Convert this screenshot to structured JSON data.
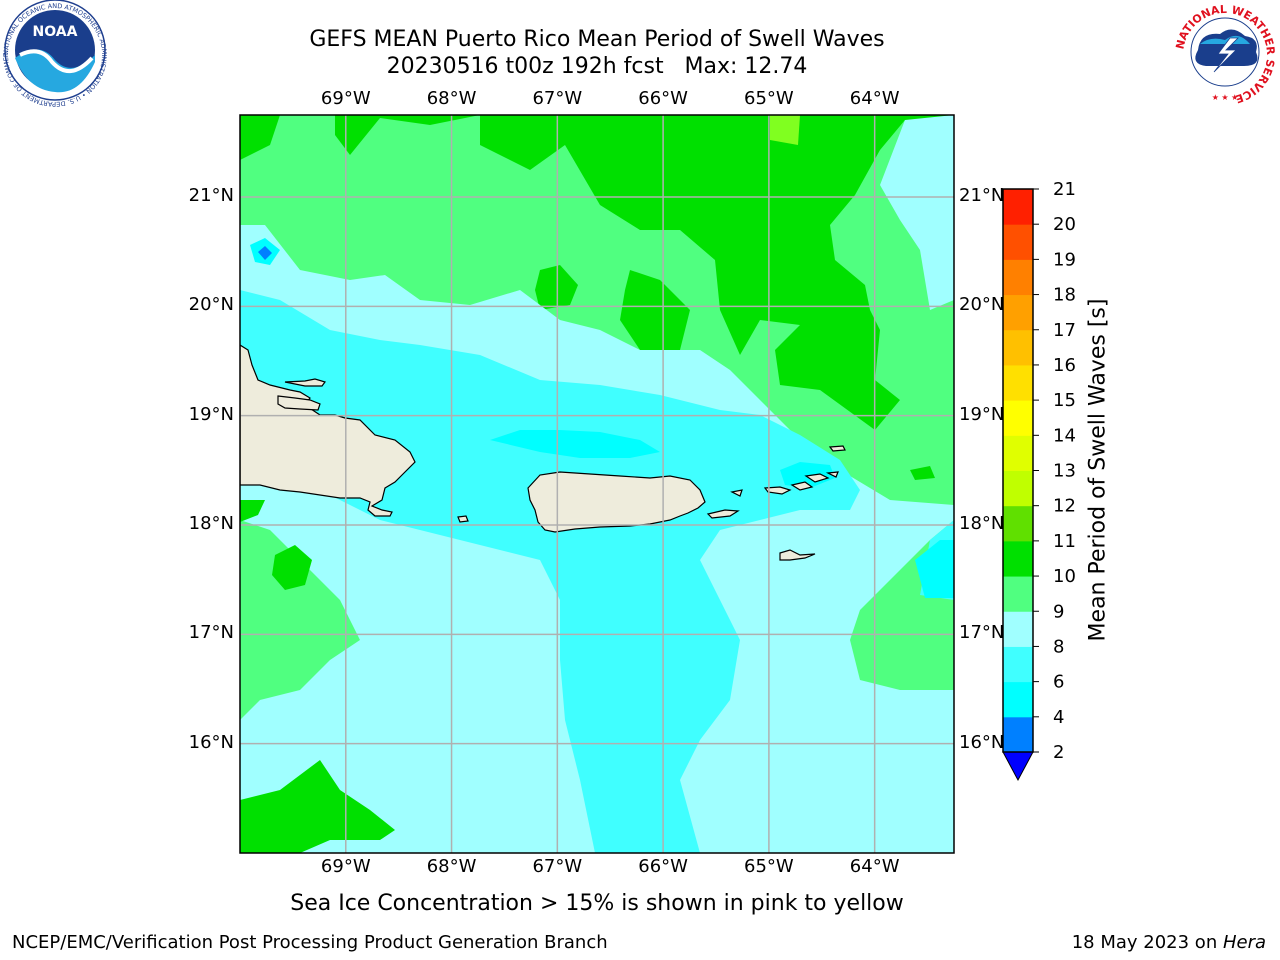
{
  "title": {
    "line1": "GEFS MEAN Puerto Rico Mean Period of Swell Waves",
    "line2": "20230516 t00z 192h fcst   Max: 12.74"
  },
  "axes": {
    "lon_labels": [
      "69°W",
      "68°W",
      "67°W",
      "66°W",
      "65°W",
      "64°W"
    ],
    "lon_values": [
      -69,
      -68,
      -67,
      -66,
      -65,
      -64
    ],
    "lat_labels": [
      "21°N",
      "20°N",
      "19°N",
      "18°N",
      "17°N",
      "16°N"
    ],
    "lat_values": [
      21,
      20,
      19,
      18,
      17,
      16
    ],
    "lon_range": [
      -70,
      -63.25
    ],
    "lat_range": [
      15,
      21.75
    ],
    "grid": true
  },
  "colorbar": {
    "label": "Mean Period of Swell Waves [s]",
    "ticks": [
      "21",
      "20",
      "19",
      "18",
      "17",
      "16",
      "15",
      "14",
      "13",
      "12",
      "11",
      "10",
      "9",
      "8",
      "6",
      "4",
      "2"
    ],
    "colors": [
      "#0000ff",
      "#0080ff",
      "#00ffff",
      "#40ffff",
      "#a0ffff",
      "#50ff80",
      "#00e000",
      "#60e000",
      "#c0ff00",
      "#e0ff00",
      "#ffff00",
      "#ffe000",
      "#ffc000",
      "#ffa000",
      "#ff8000",
      "#ff5000",
      "#ff2000",
      "#ff0000"
    ],
    "extend": "min"
  },
  "field_colors": {
    "cyan": "#00ffff",
    "light_cyan": "#40ffff",
    "pale_cyan": "#a0ffff",
    "light_green": "#50ff80",
    "green": "#00e000",
    "yellow_green": "#80ff20",
    "blue": "#0080ff",
    "land": "#eeecdc"
  },
  "logos": {
    "left": "noara-logo",
    "right": "nws-logo",
    "noaa_text": "NOAA",
    "noaa_ring": "NATIONAL OCEANIC AND ATMOSPHERIC ADMINISTRATION • U.S. DEPARTMENT OF COMMERCE •",
    "nws_ring": "NATIONAL WEATHER SERVICE"
  },
  "caption": "Sea Ice Concentration > 15% is shown in pink to yellow",
  "footer": {
    "left": "NCEP/EMC/Verification Post Processing Product Generation Branch",
    "date": "18 May 2023 on ",
    "host": "Hera"
  }
}
